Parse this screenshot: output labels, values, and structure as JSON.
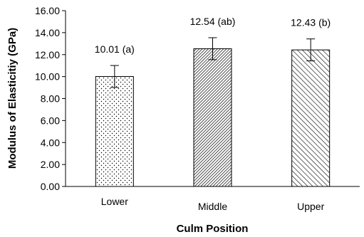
{
  "chart_data": {
    "type": "bar",
    "title": "",
    "xlabel": "Culm Position",
    "ylabel": "Modulus of Elasticitiy  (GPa)",
    "categories": [
      "Lower",
      "Middle",
      "Upper"
    ],
    "values": [
      10.01,
      12.54,
      12.43
    ],
    "error": [
      1.0,
      1.0,
      1.0
    ],
    "data_labels": [
      "10.01 (a)",
      "12.54 (ab)",
      "12.43 (b)"
    ],
    "patterns": [
      "dots",
      "dense-diagonal",
      "diagonal-hatch"
    ],
    "ylim": [
      0,
      16
    ],
    "yticks": [
      "0.00",
      "2.00",
      "4.00",
      "6.00",
      "8.00",
      "10.00",
      "12.00",
      "14.00",
      "16.00"
    ],
    "grid": false,
    "legend": "none"
  }
}
